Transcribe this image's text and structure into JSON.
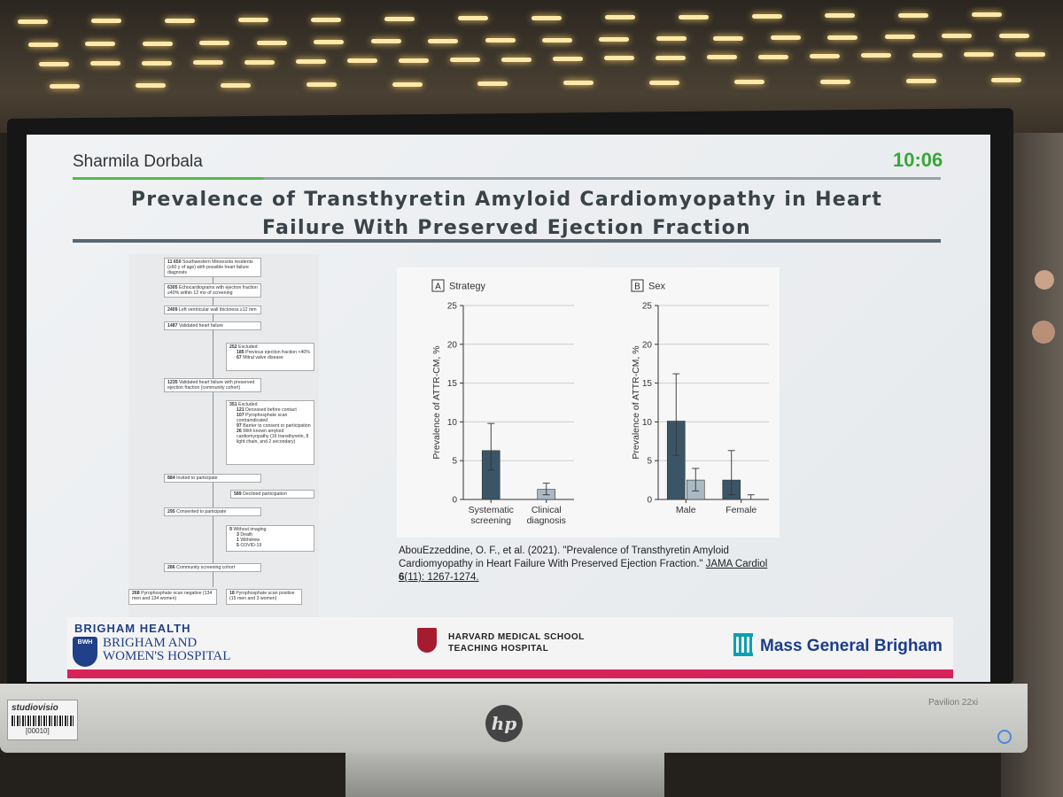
{
  "slide": {
    "presenter": "Sharmila Dorbala",
    "timer": "10:06",
    "title_line1": "Prevalence of Transthyretin Amyloid Cardiomyopathy in Heart",
    "title_line2": "Failure With Preserved Ejection Fraction"
  },
  "flowchart": [
    {
      "n": "11 650",
      "text": "Southwestern Minnesota residents (≥60 y of age) with possible heart failure diagnosis"
    },
    {
      "n": "6305",
      "text": "Echocardiograms with ejection fraction ≥40% within 12 mo of screening"
    },
    {
      "n": "2409",
      "text": "Left ventricular wall thickness ≥12 mm"
    },
    {
      "n": "1487",
      "text": "Validated heart failure"
    },
    {
      "n": "252",
      "text": "Excluded",
      "sub": [
        {
          "n": "185",
          "text": "Previous ejection fraction <40%"
        },
        {
          "n": "67",
          "text": "Mitral valve disease"
        }
      ]
    },
    {
      "n": "1235",
      "text": "Validated heart failure with preserved ejection fraction (community cohort)"
    },
    {
      "n": "351",
      "text": "Excluded",
      "sub": [
        {
          "n": "121",
          "text": "Deceased before contact"
        },
        {
          "n": "107",
          "text": "Pyrophosphate scan contraindicated"
        },
        {
          "n": "97",
          "text": "Barrier to consent or participation"
        },
        {
          "n": "26",
          "text": "With known amyloid cardiomyopathy (16 transthyretin, 8 light chain, and 2 secondary)"
        }
      ]
    },
    {
      "n": "884",
      "text": "Invited to participate"
    },
    {
      "n": "589",
      "text": "Declined participation"
    },
    {
      "n": "295",
      "text": "Consented to participate"
    },
    {
      "n": "9",
      "text": "Without imaging",
      "sub": [
        {
          "n": "3",
          "text": "Death"
        },
        {
          "n": "1",
          "text": "Withdrew"
        },
        {
          "n": "5",
          "text": "COVID-19"
        }
      ]
    },
    {
      "n": "286",
      "text": "Community screening cohort"
    },
    {
      "n": "268",
      "text": "Pyrophosphate scan negative (134 men and 134 women)"
    },
    {
      "n": "18",
      "text": "Pyrophosphate scan positive (15 men and 3 women)"
    }
  ],
  "chart_data": [
    {
      "type": "bar",
      "panel": "A",
      "title": "Strategy",
      "ylabel": "Prevalence of ATTR-CM, %",
      "ylim": [
        0,
        25
      ],
      "yticks": [
        0,
        5,
        10,
        15,
        20,
        25
      ],
      "categories": [
        "Systematic screening",
        "Clinical diagnosis"
      ],
      "category_lines": [
        [
          "Systematic",
          "screening"
        ],
        [
          "Clinical",
          "diagnosis"
        ]
      ],
      "values": [
        6.3,
        1.3
      ],
      "error_low": [
        3.8,
        0.6
      ],
      "error_high": [
        9.8,
        2.1
      ],
      "colors": [
        "#3b5566",
        "#aab9c4"
      ],
      "grid": true
    },
    {
      "type": "bar",
      "panel": "B",
      "title": "Sex",
      "ylabel": "Prevalence of ATTR-CM, %",
      "ylim": [
        0,
        25
      ],
      "yticks": [
        0,
        5,
        10,
        15,
        20,
        25
      ],
      "categories": [
        "Male",
        "Female"
      ],
      "series": [
        {
          "values": [
            10.1,
            2.5
          ],
          "error_low": [
            5.7,
            0.6
          ],
          "error_high": [
            16.2,
            6.3
          ],
          "color": "#3b5566"
        },
        {
          "values": [
            2.5,
            0.0
          ],
          "error_low": [
            1.1,
            0.0
          ],
          "error_high": [
            4.0,
            0.6
          ],
          "color": "#aab9c4"
        }
      ],
      "grid": true
    }
  ],
  "citation": {
    "plain": "AbouEzzeddine, O. F., et al. (2021). \"Prevalence of Transthyretin Amyloid Cardiomyopathy in Heart Failure With Preserved Ejection Fraction.\" ",
    "journal": "JAMA Cardiol",
    "volume": "6",
    "issue_pages": "(11): 1267-1274."
  },
  "footer": {
    "brigham_health": "BRIGHAM HEALTH",
    "bwh_badge": "BWH",
    "bwh_line1": "BRIGHAM AND",
    "bwh_line2": "WOMEN'S HOSPITAL",
    "hms_line1": "HARVARD MEDICAL SCHOOL",
    "hms_line2": "TEACHING HOSPITAL",
    "mgb": "Mass General Brigham"
  },
  "monitor": {
    "brand": "hp",
    "model": "Pavilion 22xi",
    "sticker_brand": "studiovisio",
    "sticker_code": "[00010]"
  },
  "colors": {
    "timer": "#3aa63a",
    "accent_pink": "#d7235a",
    "bwh_blue": "#20408a",
    "harvard_crimson": "#a51c30",
    "mgb_teal": "#0aa0b6"
  }
}
